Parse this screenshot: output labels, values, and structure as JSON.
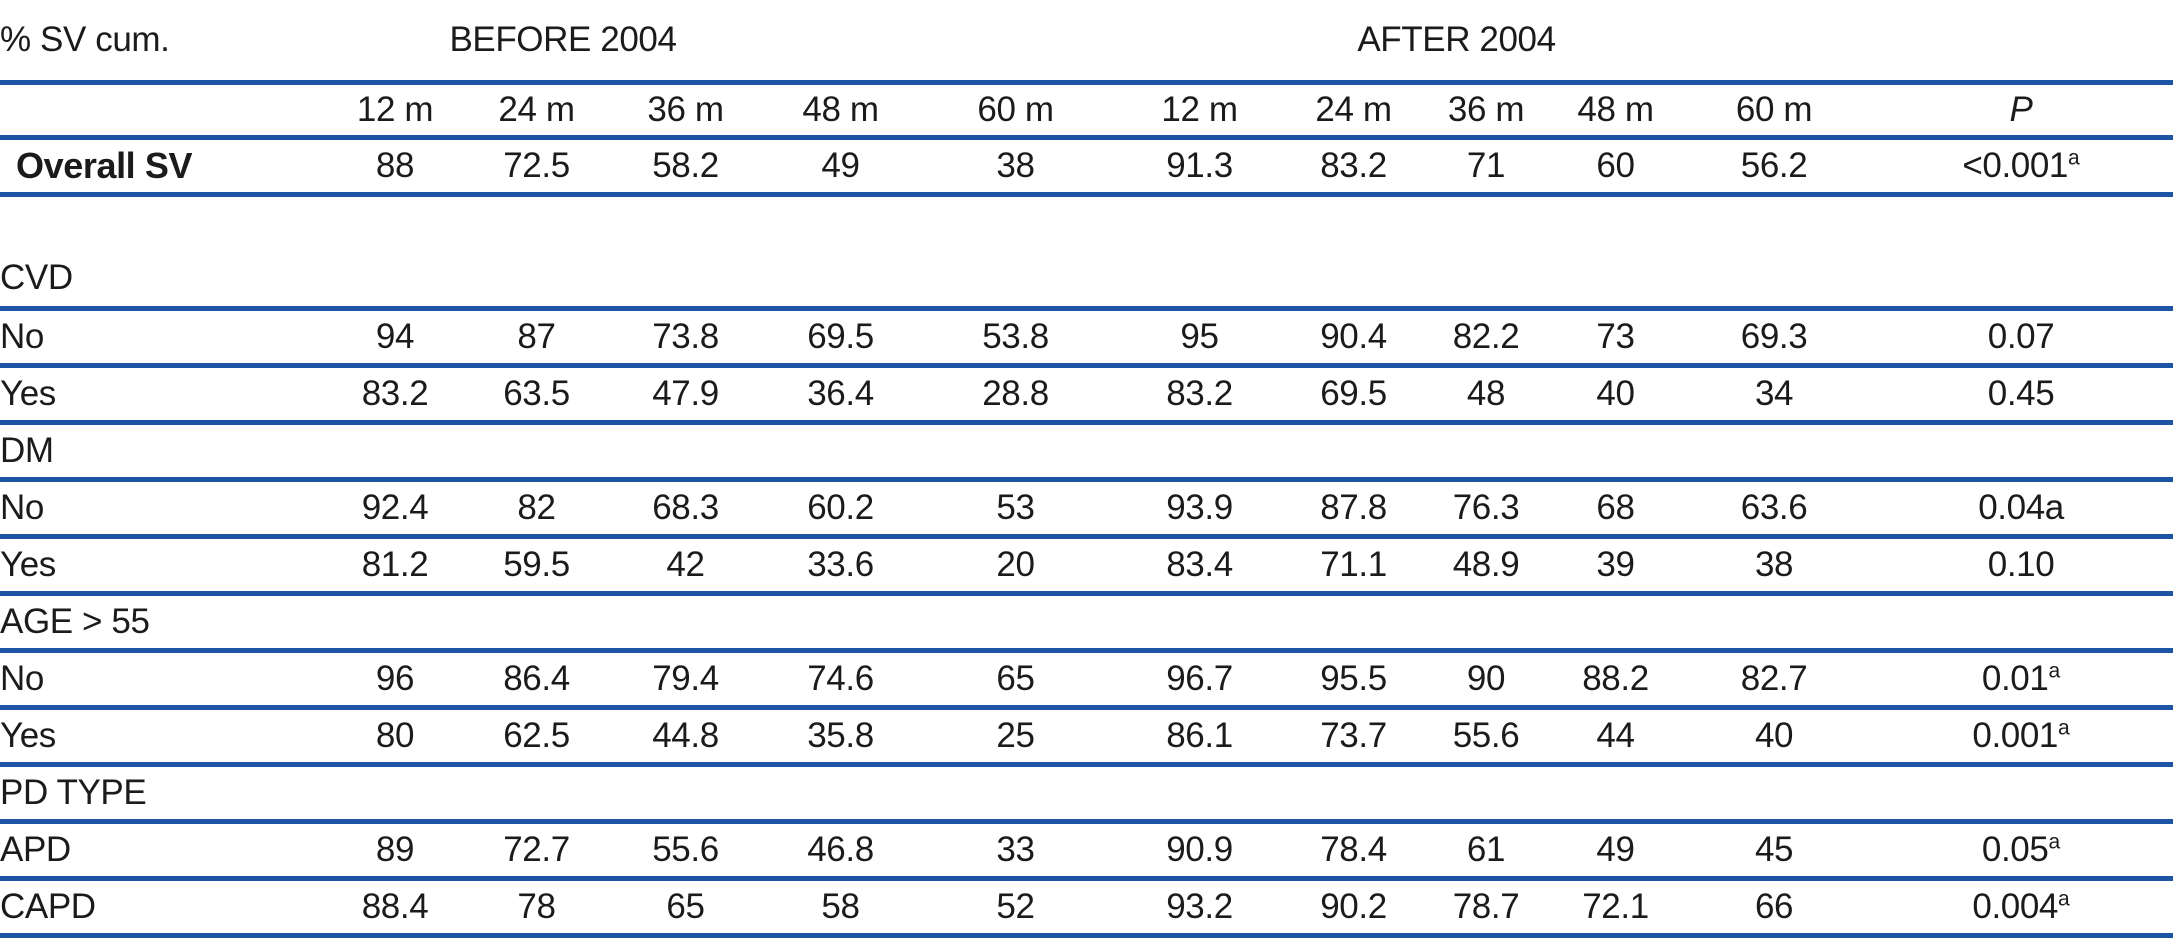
{
  "table": {
    "corner_label": "% SV cum.",
    "group_headers": {
      "before": "BEFORE 2004",
      "after": "AFTER 2004"
    },
    "time_headers": [
      "12 m",
      "24 m",
      "36 m",
      "48 m",
      "60 m"
    ],
    "p_header": "P",
    "rows": [
      {
        "type": "data",
        "label": "Overall SV",
        "bold": true,
        "before": [
          "88",
          "72.5",
          "58.2",
          "49",
          "38"
        ],
        "after": [
          "91.3",
          "83.2",
          "71",
          "60",
          "56.2"
        ],
        "p": "<0.001",
        "p_sup": "a"
      },
      {
        "type": "spacer"
      },
      {
        "type": "section",
        "label": "CVD"
      },
      {
        "type": "data",
        "label": "No",
        "bold": false,
        "before": [
          "94",
          "87",
          "73.8",
          "69.5",
          "53.8"
        ],
        "after": [
          "95",
          "90.4",
          "82.2",
          "73",
          "69.3"
        ],
        "p": "0.07",
        "p_sup": ""
      },
      {
        "type": "data",
        "label": "Yes",
        "bold": false,
        "before": [
          "83.2",
          "63.5",
          "47.9",
          "36.4",
          "28.8"
        ],
        "after": [
          "83.2",
          "69.5",
          "48",
          "40",
          "34"
        ],
        "p": "0.45",
        "p_sup": ""
      },
      {
        "type": "section",
        "label": "DM"
      },
      {
        "type": "data",
        "label": "No",
        "bold": false,
        "before": [
          "92.4",
          "82",
          "68.3",
          "60.2",
          "53"
        ],
        "after": [
          "93.9",
          "87.8",
          "76.3",
          "68",
          "63.6"
        ],
        "p": "0.04a",
        "p_sup": ""
      },
      {
        "type": "data",
        "label": "Yes",
        "bold": false,
        "before": [
          "81.2",
          "59.5",
          "42",
          "33.6",
          "20"
        ],
        "after": [
          "83.4",
          "71.1",
          "48.9",
          "39",
          "38"
        ],
        "p": "0.10",
        "p_sup": ""
      },
      {
        "type": "section",
        "label": "AGE > 55"
      },
      {
        "type": "data",
        "label": "No",
        "bold": false,
        "before": [
          "96",
          "86.4",
          "79.4",
          "74.6",
          "65"
        ],
        "after": [
          "96.7",
          "95.5",
          "90",
          "88.2",
          "82.7"
        ],
        "p": "0.01",
        "p_sup": "a"
      },
      {
        "type": "data",
        "label": "Yes",
        "bold": false,
        "before": [
          "80",
          "62.5",
          "44.8",
          "35.8",
          "25"
        ],
        "after": [
          "86.1",
          "73.7",
          "55.6",
          "44",
          "40"
        ],
        "p": "0.001",
        "p_sup": "a"
      },
      {
        "type": "section",
        "label": "PD TYPE"
      },
      {
        "type": "data",
        "label": "APD",
        "bold": false,
        "before": [
          "89",
          "72.7",
          "55.6",
          "46.8",
          "33"
        ],
        "after": [
          "90.9",
          "78.4",
          "61",
          "49",
          "45"
        ],
        "p": "0.05",
        "p_sup": "a"
      },
      {
        "type": "data",
        "label": "CAPD",
        "bold": false,
        "before": [
          "88.4",
          "78",
          "65",
          "58",
          "52"
        ],
        "after": [
          "93.2",
          "90.2",
          "78.7",
          "72.1",
          "66"
        ],
        "p": "0.004",
        "p_sup": "a"
      }
    ],
    "colors": {
      "rule_blue": "#1d54a3",
      "text": "#1c1b1a"
    }
  }
}
